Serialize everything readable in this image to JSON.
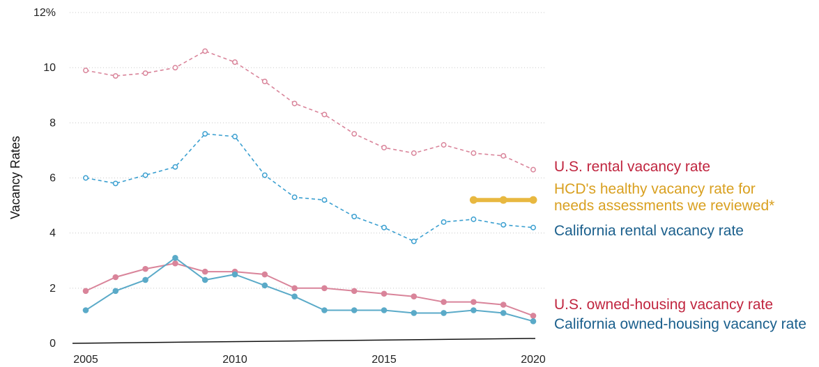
{
  "chart_data": {
    "type": "line",
    "title": "",
    "xlabel": "",
    "ylabel": "Vacancy Rates",
    "x": [
      2005,
      2006,
      2007,
      2008,
      2009,
      2010,
      2011,
      2012,
      2013,
      2014,
      2015,
      2016,
      2017,
      2018,
      2019,
      2020
    ],
    "xticks": [
      2005,
      2010,
      2015,
      2020
    ],
    "xlim": [
      2005,
      2020
    ],
    "ylim": [
      0,
      12
    ],
    "yticks": [
      0,
      2,
      4,
      6,
      8,
      10,
      12
    ],
    "ytick_labels": [
      "0",
      "2",
      "4",
      "6",
      "8",
      "10",
      "12%"
    ],
    "grid": "horizontal dotted",
    "legend_placement": "right (direct labels)",
    "series": [
      {
        "name": "U.S. rental vacancy rate",
        "color": "#c0253f",
        "line_color": "#d9849a",
        "style": "dashed",
        "values": [
          9.9,
          9.7,
          9.8,
          10.0,
          10.6,
          10.2,
          9.5,
          8.7,
          8.3,
          7.6,
          7.1,
          6.9,
          7.2,
          6.9,
          6.8,
          6.3
        ]
      },
      {
        "name": "HCD's healthy vacancy rate for needs assessments we reviewed*",
        "name_lines": [
          "HCD's healthy vacancy rate for",
          "needs assessments we reviewed*"
        ],
        "color": "#d9a020",
        "line_color": "#e8b840",
        "style": "thick",
        "x": [
          2018,
          2019,
          2020
        ],
        "values": [
          5.2,
          5.2,
          5.2
        ]
      },
      {
        "name": "California rental vacancy rate",
        "color": "#1a5f8c",
        "line_color": "#3a9fd0",
        "style": "dashed",
        "values": [
          6.0,
          5.8,
          6.1,
          6.4,
          7.6,
          7.5,
          6.1,
          5.3,
          5.2,
          4.6,
          4.2,
          3.7,
          4.4,
          4.5,
          4.3,
          4.2
        ]
      },
      {
        "name": "U.S. owned-housing vacancy rate",
        "color": "#c0253f",
        "line_color": "#d9849a",
        "style": "solid",
        "values": [
          1.9,
          2.4,
          2.7,
          2.9,
          2.6,
          2.6,
          2.5,
          2.0,
          2.0,
          1.9,
          1.8,
          1.7,
          1.5,
          1.5,
          1.4,
          1.0
        ]
      },
      {
        "name": "California owned-housing vacancy rate",
        "color": "#1a5f8c",
        "line_color": "#5aaac8",
        "style": "solid",
        "values": [
          1.2,
          1.9,
          2.3,
          3.1,
          2.3,
          2.5,
          2.1,
          1.7,
          1.2,
          1.2,
          1.2,
          1.1,
          1.1,
          1.2,
          1.1,
          0.8
        ]
      }
    ]
  }
}
